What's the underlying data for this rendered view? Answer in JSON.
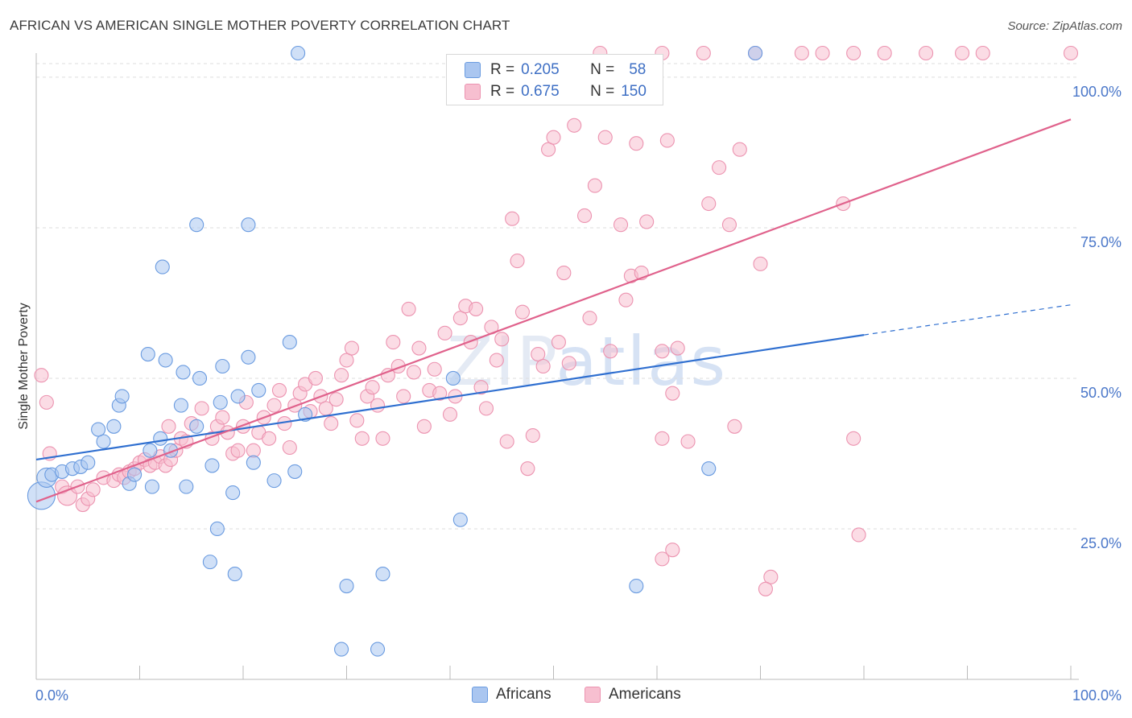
{
  "header": {
    "title": "AFRICAN VS AMERICAN SINGLE MOTHER POVERTY CORRELATION CHART",
    "source": "Source: ZipAtlas.com"
  },
  "watermark": {
    "zip": "ZIP",
    "atlas": "atlas"
  },
  "legend": {
    "africans": {
      "r_label": "R =",
      "r_value": "0.205",
      "n_label": "N =",
      "n_value": "58"
    },
    "americans": {
      "r_label": "R =",
      "r_value": "0.675",
      "n_label": "N =",
      "n_value": "150"
    }
  },
  "bottom_legend": {
    "africans": "Africans",
    "americans": "Americans"
  },
  "colors": {
    "africans_fill": "#aac6f0",
    "africans_stroke": "#6a9be0",
    "africans_line": "#2f6fd0",
    "americans_fill": "#f7bfd0",
    "americans_stroke": "#ec93b0",
    "americans_line": "#e0628c",
    "grid": "#dedede",
    "tick_text": "#4a77c9"
  },
  "chart_data": {
    "type": "scatter",
    "title": "AFRICAN VS AMERICAN SINGLE MOTHER POVERTY CORRELATION CHART",
    "xlabel": "",
    "ylabel": "Single Mother Poverty",
    "xlim": [
      0,
      100
    ],
    "ylim": [
      0,
      104
    ],
    "x_tick_labels": [
      "0.0%",
      "100.0%"
    ],
    "y_ticks": [
      {
        "value": 25,
        "label": "25.0%"
      },
      {
        "value": 50,
        "label": "50.0%"
      },
      {
        "value": 75,
        "label": "75.0%"
      },
      {
        "value": 100,
        "label": "100.0%"
      }
    ],
    "series": [
      {
        "name": "Africans",
        "r": 0.205,
        "n": 58,
        "trend": {
          "x0": 0,
          "y0": 36.5,
          "x1": 80,
          "y1": 57.2,
          "dashed_to_x": 100,
          "dashed_to_y": 62.2
        },
        "points": [
          [
            0.5,
            30.5,
            3
          ],
          [
            1,
            33.5,
            2
          ],
          [
            1.5,
            34,
            1
          ],
          [
            2.5,
            34.5,
            1
          ],
          [
            3.5,
            35,
            1
          ],
          [
            4.3,
            35.3,
            1
          ],
          [
            5,
            36,
            1
          ],
          [
            6.5,
            39.5,
            1
          ],
          [
            6,
            41.5,
            1
          ],
          [
            7.5,
            42,
            1
          ],
          [
            8,
            45.5,
            1
          ],
          [
            8.3,
            47,
            1
          ],
          [
            9,
            32.5,
            1
          ],
          [
            9.5,
            34,
            1
          ],
          [
            11,
            38,
            1
          ],
          [
            12,
            40,
            1
          ],
          [
            12.5,
            53,
            1
          ],
          [
            10.8,
            54,
            1
          ],
          [
            11.2,
            32,
            1
          ],
          [
            14.5,
            32,
            1
          ],
          [
            13,
            38,
            1
          ],
          [
            14,
            45.5,
            1
          ],
          [
            14.2,
            51,
            1
          ],
          [
            15.5,
            42,
            1
          ],
          [
            15.8,
            50,
            1
          ],
          [
            17.8,
            46,
            1
          ],
          [
            17,
            35.5,
            1
          ],
          [
            18,
            52,
            1
          ],
          [
            19.5,
            47,
            1
          ],
          [
            20.5,
            53.5,
            1
          ],
          [
            21,
            36,
            1
          ],
          [
            23,
            33,
            1
          ],
          [
            19,
            31,
            1
          ],
          [
            17.5,
            25,
            1
          ],
          [
            16.8,
            19.5,
            1
          ],
          [
            19.2,
            17.5,
            1
          ],
          [
            15.5,
            75.5,
            1
          ],
          [
            20.5,
            75.5,
            1
          ],
          [
            12.2,
            68.5,
            1
          ],
          [
            24.5,
            56,
            1
          ],
          [
            25,
            34.5,
            1
          ],
          [
            26,
            44,
            1
          ],
          [
            21.5,
            48,
            1
          ],
          [
            25.3,
            104,
            1
          ],
          [
            30,
            15.5,
            1
          ],
          [
            29.5,
            5,
            1
          ],
          [
            33,
            5,
            1
          ],
          [
            33.5,
            17.5,
            1
          ],
          [
            41,
            26.5,
            1
          ],
          [
            40.3,
            50,
            1
          ],
          [
            58,
            15.5,
            1
          ],
          [
            65,
            35,
            1
          ],
          [
            69.5,
            104,
            1
          ]
        ]
      },
      {
        "name": "Americans",
        "r": 0.675,
        "n": 150,
        "trend": {
          "x0": 0,
          "y0": 29.5,
          "x1": 100,
          "y1": 93
        },
        "points": [
          [
            0.5,
            50.5,
            1
          ],
          [
            1,
            46,
            1
          ],
          [
            1.3,
            37.5,
            1
          ],
          [
            2.5,
            32,
            1
          ],
          [
            3,
            30.5,
            2
          ],
          [
            4,
            32,
            1
          ],
          [
            4.5,
            29,
            1
          ],
          [
            5,
            30,
            1
          ],
          [
            5.5,
            31.5,
            1
          ],
          [
            6.5,
            33.5,
            1
          ],
          [
            7.5,
            33,
            1
          ],
          [
            8,
            34,
            1
          ],
          [
            8.5,
            33.5,
            1
          ],
          [
            9,
            34.5,
            1
          ],
          [
            9.5,
            35,
            1
          ],
          [
            10,
            36,
            1
          ],
          [
            10.5,
            36.5,
            1
          ],
          [
            11,
            35.5,
            1
          ],
          [
            11.5,
            36,
            1
          ],
          [
            12,
            37,
            1
          ],
          [
            12.5,
            35.5,
            1
          ],
          [
            13,
            36.5,
            1
          ],
          [
            13.5,
            38,
            1
          ],
          [
            14,
            40,
            1
          ],
          [
            14.5,
            39.5,
            1
          ],
          [
            12.8,
            42,
            1
          ],
          [
            15,
            42.5,
            1
          ],
          [
            16,
            45,
            1
          ],
          [
            17,
            40,
            1
          ],
          [
            17.5,
            42,
            1
          ],
          [
            18,
            43.5,
            1
          ],
          [
            18.5,
            41,
            1
          ],
          [
            19,
            37.5,
            1
          ],
          [
            19.5,
            38,
            1
          ],
          [
            20,
            42,
            1
          ],
          [
            20.3,
            46,
            1
          ],
          [
            21,
            38,
            1
          ],
          [
            21.5,
            41,
            1
          ],
          [
            22,
            43.5,
            1
          ],
          [
            22.5,
            40,
            1
          ],
          [
            23,
            45.5,
            1
          ],
          [
            23.5,
            48,
            1
          ],
          [
            24,
            42.5,
            1
          ],
          [
            24.5,
            38.5,
            1
          ],
          [
            25,
            45.5,
            1
          ],
          [
            25.5,
            47.5,
            1
          ],
          [
            26,
            49,
            1
          ],
          [
            26.5,
            44.5,
            1
          ],
          [
            27,
            50,
            1
          ],
          [
            27.5,
            47,
            1
          ],
          [
            28,
            45,
            1
          ],
          [
            28.5,
            42.5,
            1
          ],
          [
            29,
            46.5,
            1
          ],
          [
            29.5,
            50.5,
            1
          ],
          [
            30,
            53,
            1
          ],
          [
            30.5,
            55,
            1
          ],
          [
            31,
            43,
            1
          ],
          [
            31.5,
            40,
            1
          ],
          [
            32,
            47,
            1
          ],
          [
            32.5,
            48.5,
            1
          ],
          [
            33,
            45.5,
            1
          ],
          [
            33.5,
            40,
            1
          ],
          [
            34,
            50.5,
            1
          ],
          [
            34.5,
            56,
            1
          ],
          [
            35,
            52,
            1
          ],
          [
            35.5,
            47,
            1
          ],
          [
            36,
            61.5,
            1
          ],
          [
            36.5,
            51,
            1
          ],
          [
            37,
            55,
            1
          ],
          [
            37.5,
            42,
            1
          ],
          [
            38,
            48,
            1
          ],
          [
            38.5,
            51.5,
            1
          ],
          [
            39,
            47.5,
            1
          ],
          [
            39.5,
            57.5,
            1
          ],
          [
            40,
            44,
            1
          ],
          [
            40.5,
            47,
            1
          ],
          [
            41,
            60,
            1
          ],
          [
            41.5,
            62,
            1
          ],
          [
            42,
            56,
            1
          ],
          [
            42.5,
            61.5,
            1
          ],
          [
            43,
            48.5,
            1
          ],
          [
            43.5,
            45,
            1
          ],
          [
            44,
            58.5,
            1
          ],
          [
            44.5,
            53,
            1
          ],
          [
            45,
            56.5,
            1
          ],
          [
            45.5,
            39.5,
            1
          ],
          [
            46,
            76.5,
            1
          ],
          [
            46.5,
            69.5,
            1
          ],
          [
            47,
            61,
            1
          ],
          [
            47.5,
            35,
            1
          ],
          [
            48,
            40.5,
            1
          ],
          [
            48.5,
            54,
            1
          ],
          [
            49,
            52,
            1
          ],
          [
            49.5,
            88,
            1
          ],
          [
            50,
            90,
            1
          ],
          [
            50.5,
            56,
            1
          ],
          [
            51,
            67.5,
            1
          ],
          [
            51.5,
            52.5,
            1
          ],
          [
            52,
            92,
            1
          ],
          [
            53,
            77,
            1
          ],
          [
            53.5,
            60,
            1
          ],
          [
            54,
            82,
            1
          ],
          [
            55,
            90,
            1
          ],
          [
            55.5,
            54.5,
            1
          ],
          [
            56.5,
            75.5,
            1
          ],
          [
            57,
            63,
            1
          ],
          [
            57.5,
            67,
            1
          ],
          [
            58,
            89,
            1
          ],
          [
            58.5,
            67.5,
            1
          ],
          [
            59,
            76,
            1
          ],
          [
            60.5,
            54.5,
            1
          ],
          [
            61,
            89.5,
            1
          ],
          [
            61.5,
            47.5,
            1
          ],
          [
            62,
            55,
            1
          ],
          [
            63,
            39.5,
            1
          ],
          [
            65,
            79,
            1
          ],
          [
            66,
            85,
            1
          ],
          [
            67,
            75.5,
            1
          ],
          [
            68,
            88,
            1
          ],
          [
            70,
            69,
            1
          ],
          [
            71,
            17,
            1
          ],
          [
            70.5,
            15,
            1
          ],
          [
            61.5,
            21.5,
            1
          ],
          [
            60.5,
            20,
            1
          ],
          [
            60.5,
            40,
            1
          ],
          [
            67.5,
            42,
            1
          ],
          [
            78,
            79,
            1
          ],
          [
            79,
            40,
            1
          ],
          [
            79.5,
            24,
            1
          ],
          [
            54.5,
            104,
            1
          ],
          [
            60.5,
            104,
            1
          ],
          [
            64.5,
            104,
            1
          ],
          [
            69.5,
            104,
            1
          ],
          [
            74,
            104,
            1
          ],
          [
            76,
            104,
            1
          ],
          [
            79,
            104,
            1
          ],
          [
            82,
            104,
            1
          ],
          [
            86,
            104,
            1
          ],
          [
            89.5,
            104,
            1
          ],
          [
            91.5,
            104,
            1
          ],
          [
            100,
            104,
            1
          ]
        ]
      }
    ]
  }
}
